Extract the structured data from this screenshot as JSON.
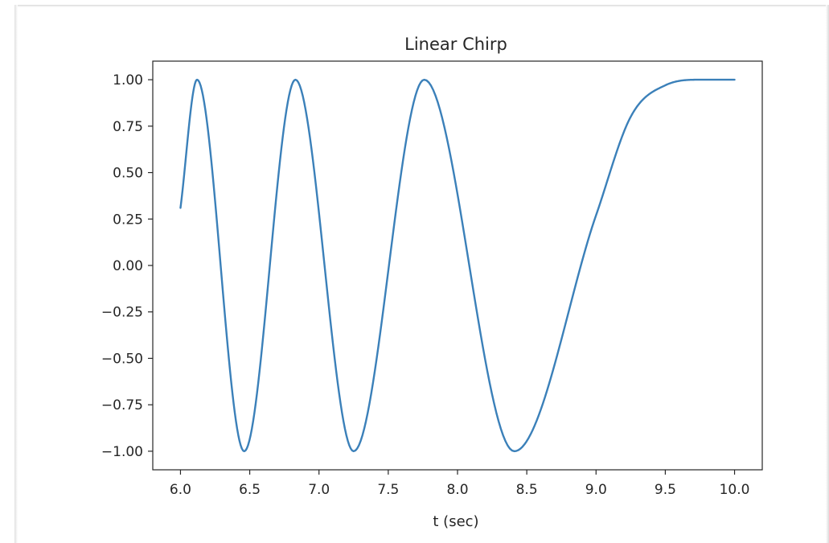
{
  "chart_data": {
    "type": "line",
    "title": "Linear Chirp",
    "xlabel": "t (sec)",
    "ylabel": "",
    "xlim": [
      5.8,
      10.2
    ],
    "ylim": [
      -1.1,
      1.1
    ],
    "xticks": [
      6.0,
      6.5,
      7.0,
      7.5,
      8.0,
      8.5,
      9.0,
      9.5,
      10.0
    ],
    "xtick_labels": [
      "6.0",
      "6.5",
      "7.0",
      "7.5",
      "8.0",
      "8.5",
      "9.0",
      "9.5",
      "10.0"
    ],
    "yticks": [
      1.0,
      0.75,
      0.5,
      0.25,
      0.0,
      -0.25,
      -0.5,
      -0.75,
      -1.0
    ],
    "ytick_labels": [
      "1.00",
      "0.75",
      "0.50",
      "0.25",
      "0.00",
      "−0.25",
      "−0.50",
      "−0.75",
      "−1.00"
    ],
    "grid": false,
    "series": [
      {
        "color": "#3b80b9",
        "x": [
          6.0,
          6.12,
          6.46,
          6.83,
          7.25,
          7.76,
          8.41,
          9.0,
          9.25,
          9.5,
          9.75,
          10.0
        ],
        "y": [
          0.31,
          1.0,
          -1.0,
          1.0,
          -1.0,
          1.0,
          -1.0,
          0.27,
          0.8,
          0.97,
          1.0,
          1.0
        ]
      }
    ]
  }
}
